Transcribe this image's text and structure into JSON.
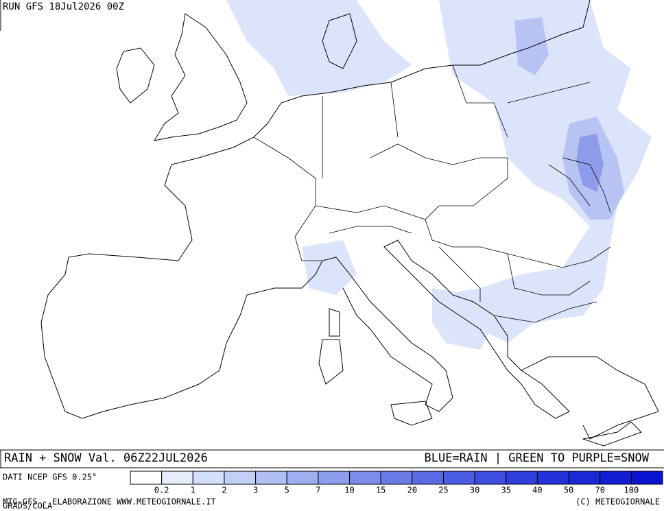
{
  "header": {
    "run": "RUN GFS 18Jul2026 00Z"
  },
  "footer": {
    "title": "RAIN + SNOW Val. 06Z22JUL2026",
    "legend_note": "BLUE=RAIN | GREEN TO PURPLE=SNOW",
    "source": "DATI NCEP GFS 0.25°",
    "credit_left": "MTG-GFS - ELABORAZIONE WWW.METEOGIORNALE.IT",
    "grads": "GRADS/COLA",
    "copyright": "(C) METEOGIORNALE"
  },
  "colorbar": {
    "labels": [
      0.2,
      1,
      2,
      3,
      5,
      7,
      10,
      15,
      20,
      25,
      30,
      35,
      40,
      50,
      70,
      100
    ],
    "colors": [
      "#ffffff",
      "#e6ecfb",
      "#d3defa",
      "#c2d0f7",
      "#b0c0f4",
      "#9eaff1",
      "#8d9eee",
      "#7b8deb",
      "#6a7ce8",
      "#5a6ce5",
      "#4a5ce2",
      "#3c4ddf",
      "#2f3fdc",
      "#2433d9",
      "#1a28d6",
      "#111ed3",
      "#0a14d0"
    ]
  }
}
